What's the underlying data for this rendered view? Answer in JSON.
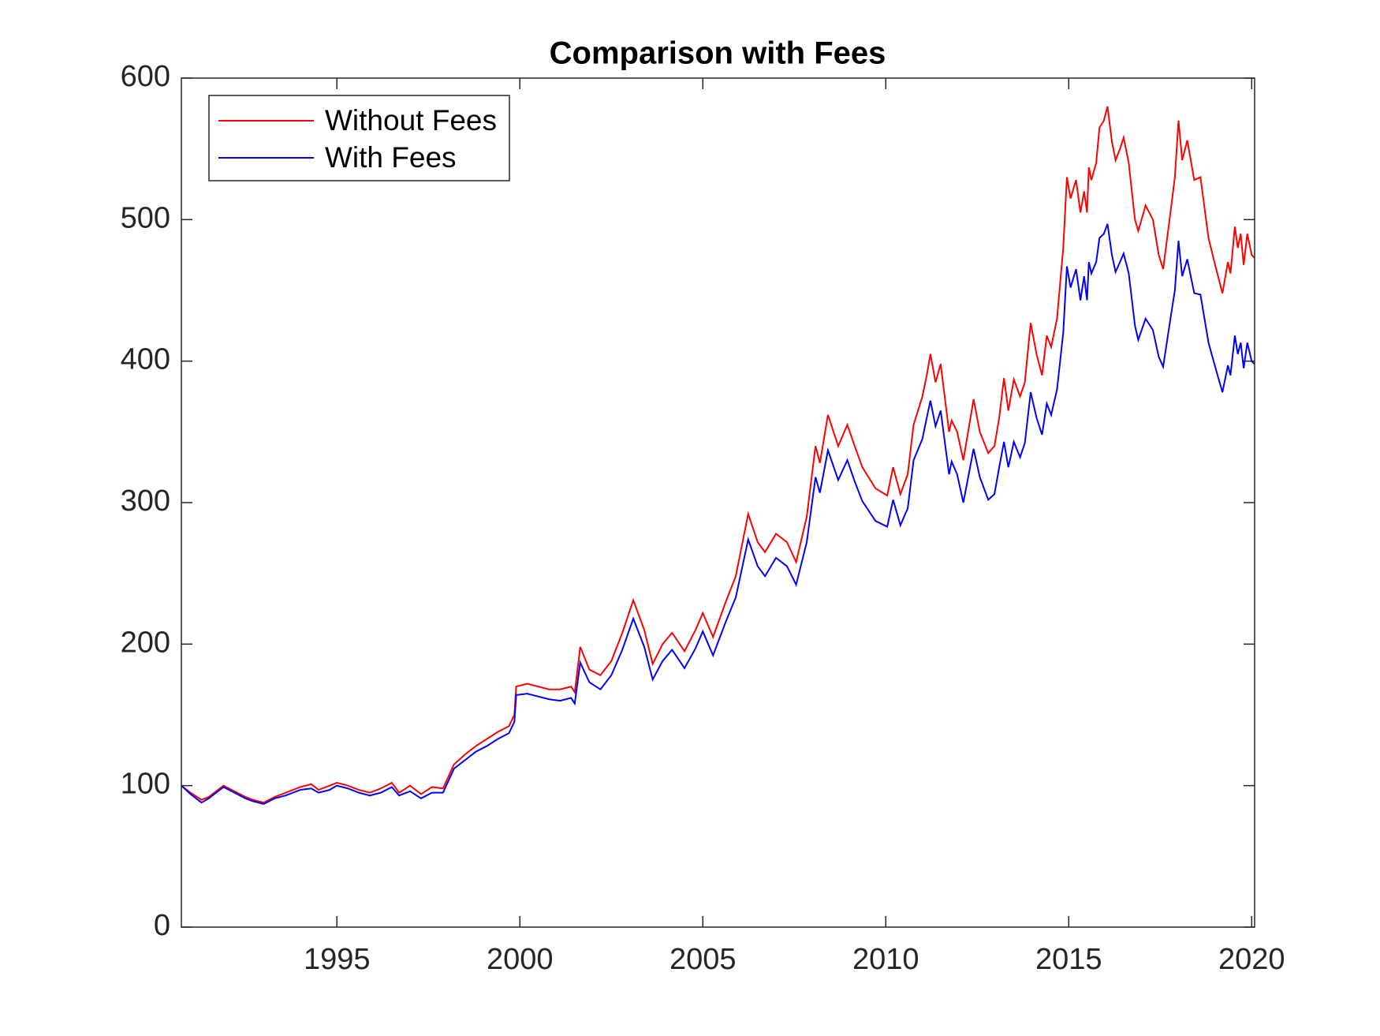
{
  "chart_data": {
    "type": "line",
    "title": "Comparison with Fees",
    "x": [
      1990.75,
      1991.0,
      1991.3,
      1991.5,
      1991.9,
      1992.2,
      1992.5,
      1992.7,
      1993.0,
      1993.3,
      1993.6,
      1994.0,
      1994.3,
      1994.5,
      1994.8,
      1995.0,
      1995.3,
      1995.6,
      1995.9,
      1996.2,
      1996.5,
      1996.7,
      1997.0,
      1997.3,
      1997.6,
      1997.9,
      1998.2,
      1998.5,
      1998.8,
      1999.1,
      1999.4,
      1999.7,
      1999.85,
      1999.9,
      2000.2,
      2000.5,
      2000.8,
      2001.1,
      2001.4,
      2001.5,
      2001.65,
      2001.9,
      2002.2,
      2002.5,
      2002.8,
      2003.1,
      2003.4,
      2003.63,
      2003.9,
      2004.16,
      2004.5,
      2004.8,
      2005.0,
      2005.28,
      2005.6,
      2005.9,
      2006.24,
      2006.5,
      2006.7,
      2007.0,
      2007.3,
      2007.55,
      2007.84,
      2008.08,
      2008.2,
      2008.42,
      2008.7,
      2008.95,
      2009.15,
      2009.36,
      2009.72,
      2010.04,
      2010.2,
      2010.4,
      2010.6,
      2010.76,
      2011.0,
      2011.12,
      2011.22,
      2011.36,
      2011.5,
      2011.73,
      2011.8,
      2011.95,
      2012.12,
      2012.4,
      2012.57,
      2012.8,
      2012.97,
      2013.1,
      2013.23,
      2013.35,
      2013.5,
      2013.67,
      2013.8,
      2013.96,
      2014.12,
      2014.27,
      2014.4,
      2014.52,
      2014.68,
      2014.85,
      2014.95,
      2015.05,
      2015.2,
      2015.32,
      2015.42,
      2015.5,
      2015.55,
      2015.62,
      2015.75,
      2015.84,
      2015.96,
      2016.06,
      2016.18,
      2016.28,
      2016.4,
      2016.5,
      2016.64,
      2016.81,
      2016.9,
      2017.1,
      2017.3,
      2017.46,
      2017.58,
      2017.78,
      2017.9,
      2018.0,
      2018.1,
      2018.24,
      2018.43,
      2018.6,
      2018.82,
      2018.98,
      2019.2,
      2019.35,
      2019.42,
      2019.54,
      2019.62,
      2019.7,
      2019.78,
      2019.88,
      2020.0,
      2020.07
    ],
    "series": [
      {
        "name": "Without Fees",
        "color": "#ff0000",
        "values": [
          100,
          95,
          90,
          92,
          100,
          96,
          92,
          90,
          88,
          92,
          95,
          99,
          101,
          97,
          100,
          102,
          100,
          97,
          95,
          98,
          102,
          95,
          100,
          94,
          99,
          98,
          115,
          122,
          128,
          133,
          138,
          142,
          150,
          170,
          172,
          170,
          168,
          168,
          170,
          166,
          198,
          182,
          178,
          188,
          208,
          231,
          210,
          186,
          200,
          208,
          195,
          210,
          222,
          205,
          228,
          248,
          292,
          272,
          265,
          278,
          272,
          258,
          290,
          340,
          328,
          362,
          340,
          355,
          340,
          325,
          310,
          305,
          325,
          306,
          320,
          355,
          375,
          390,
          405,
          385,
          398,
          350,
          358,
          350,
          330,
          373,
          350,
          335,
          340,
          360,
          388,
          365,
          387,
          375,
          385,
          427,
          405,
          390,
          418,
          410,
          430,
          480,
          530,
          515,
          528,
          505,
          520,
          505,
          537,
          528,
          540,
          565,
          570,
          580,
          555,
          542,
          550,
          558,
          540,
          500,
          492,
          510,
          500,
          475,
          465,
          505,
          530,
          570,
          542,
          556,
          528,
          530,
          487,
          470,
          448,
          470,
          462,
          495,
          480,
          490,
          468,
          490,
          475,
          473
        ]
      },
      {
        "name": "With Fees",
        "color": "#0000ff",
        "values": [
          100,
          94,
          88,
          91,
          99,
          95,
          91,
          89,
          87,
          91,
          93,
          97,
          98,
          95,
          97,
          100,
          98,
          95,
          93,
          95,
          99,
          93,
          96,
          91,
          95,
          95,
          112,
          118,
          124,
          128,
          133,
          137,
          145,
          164,
          165,
          163,
          161,
          160,
          162,
          158,
          187,
          173,
          168,
          178,
          196,
          218,
          198,
          175,
          188,
          196,
          183,
          197,
          209,
          192,
          214,
          233,
          274,
          255,
          248,
          261,
          255,
          242,
          272,
          318,
          307,
          337,
          316,
          330,
          315,
          301,
          287,
          283,
          302,
          284,
          296,
          330,
          345,
          360,
          372,
          354,
          365,
          320,
          329,
          320,
          300,
          338,
          318,
          302,
          306,
          325,
          343,
          325,
          343,
          332,
          342,
          378,
          360,
          348,
          370,
          362,
          380,
          420,
          467,
          452,
          465,
          443,
          460,
          443,
          470,
          462,
          470,
          487,
          490,
          497,
          475,
          463,
          470,
          476,
          462,
          425,
          415,
          430,
          422,
          403,
          396,
          430,
          450,
          485,
          460,
          472,
          448,
          447,
          413,
          398,
          378,
          397,
          390,
          418,
          405,
          413,
          395,
          413,
          400,
          398
        ]
      }
    ],
    "xlim": [
      1990.75,
      2020.08
    ],
    "xticks": [
      1995,
      2000,
      2005,
      2010,
      2015,
      2020
    ],
    "ylim": [
      0,
      600
    ],
    "yticks": [
      0,
      100,
      200,
      300,
      400,
      500,
      600
    ],
    "grid": false,
    "legend": "northwest"
  }
}
